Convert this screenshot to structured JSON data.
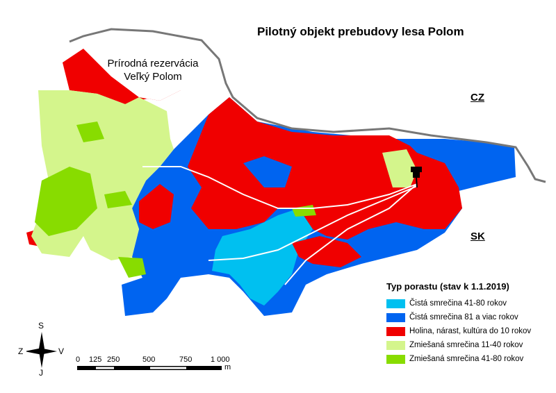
{
  "title": "Pilotný objekt prebudovy lesa Polom",
  "reserve_label": [
    "Prírodná rezervácia",
    "Veľký Polom"
  ],
  "countries": {
    "north": "CZ",
    "south": "SK"
  },
  "legend": {
    "title": "Typ porastu (stav k 1.1.2019)",
    "items": [
      {
        "label": "Čistá smrečina 41-80 rokov",
        "color": "#00c0f0"
      },
      {
        "label": "Čistá smrečina 81 a viac rokov",
        "color": "#0064f0"
      },
      {
        "label": "Holina, nárast, kultúra do 10 rokov",
        "color": "#f00000"
      },
      {
        "label": "Zmiešaná smrečina 11-40 rokov",
        "color": "#d4f58c"
      },
      {
        "label": "Zmiešaná smrečina 41-80 rokov",
        "color": "#88dc00"
      }
    ]
  },
  "compass": {
    "north": "S",
    "south": "J",
    "west": "Z",
    "east": "V"
  },
  "scale_bar": {
    "ticks": [
      "0",
      "125",
      "250",
      "500",
      "750",
      "1 000"
    ],
    "unit": "m"
  },
  "marker_icon": "pushpin-icon"
}
